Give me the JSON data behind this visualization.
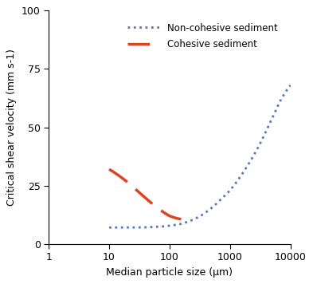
{
  "title": "",
  "xlabel": "Median particle size (μm)",
  "ylabel": "Critical shear velocity (mm s-1)",
  "xlim": [
    1,
    10000
  ],
  "ylim": [
    0,
    100
  ],
  "yticks": [
    0,
    25,
    50,
    75,
    100
  ],
  "xticks": [
    1,
    10,
    100,
    1000,
    10000
  ],
  "non_cohesive_color": "#5577bb",
  "cohesive_color": "#dd4422",
  "legend_labels": [
    "Non-cohesive sediment",
    "Cohesive sediment"
  ],
  "background_color": "#ffffff",
  "nc_x": [
    10,
    20,
    30,
    50,
    80,
    100,
    150,
    200,
    300,
    500,
    700,
    1000,
    2000,
    3000,
    5000,
    7000,
    10000
  ],
  "nc_y": [
    7.0,
    7.0,
    7.0,
    7.2,
    7.5,
    7.8,
    8.5,
    9.5,
    11.5,
    15.5,
    19.0,
    23.0,
    34.0,
    42.0,
    54.0,
    62.0,
    68.0
  ],
  "coh_x": [
    10,
    20,
    30,
    50,
    80,
    100,
    130,
    160,
    200,
    250,
    350,
    500,
    700,
    1000,
    2000,
    3000,
    5000,
    7000,
    10000
  ],
  "coh_y": [
    32.0,
    26.5,
    22.5,
    17.5,
    13.5,
    12.0,
    11.0,
    10.5,
    10.0,
    10.5,
    12.0,
    15.5,
    19.0,
    23.0,
    34.0,
    42.0,
    54.0,
    62.0,
    68.0
  ]
}
